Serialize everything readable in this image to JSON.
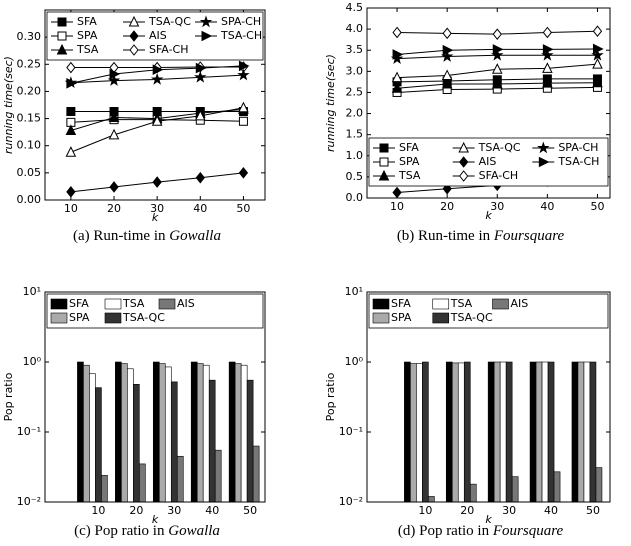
{
  "chart_data": [
    {
      "type": "line",
      "caption": {
        "text": "(a) Run-time in",
        "emphasis": "Gowalla"
      },
      "xlabel": "k",
      "ylabel": "running time(sec)",
      "x": [
        10,
        20,
        30,
        40,
        50
      ],
      "xlim": [
        4,
        55
      ],
      "xticks": [
        10,
        20,
        30,
        40,
        50
      ],
      "ylim": [
        0,
        0.35
      ],
      "yticks": [
        {
          "value": 0,
          "label": "0.00"
        },
        {
          "value": 0.05,
          "label": "0.05"
        },
        {
          "value": 0.1,
          "label": "0.10"
        },
        {
          "value": 0.15,
          "label": "0.15"
        },
        {
          "value": 0.2,
          "label": "0.20"
        },
        {
          "value": 0.25,
          "label": "0.25"
        },
        {
          "value": 0.3,
          "label": "0.30"
        }
      ],
      "legend": "upper left",
      "legend_columns": 3,
      "series": [
        {
          "name": "SFA",
          "color": "#000000",
          "marker": "square",
          "values": [
            0.163,
            0.163,
            0.163,
            0.163,
            0.163
          ]
        },
        {
          "name": "SPA",
          "color": "#000000",
          "marker": "square-open",
          "values": [
            0.143,
            0.148,
            0.148,
            0.147,
            0.145
          ]
        },
        {
          "name": "TSA",
          "color": "#000000",
          "marker": "triangle",
          "values": [
            0.128,
            0.152,
            0.15,
            0.16,
            0.167
          ]
        },
        {
          "name": "TSA-QC",
          "color": "#000000",
          "marker": "triangle-open",
          "values": [
            0.088,
            0.12,
            0.145,
            0.155,
            0.17
          ]
        },
        {
          "name": "AIS",
          "color": "#000000",
          "marker": "diamond",
          "values": [
            0.015,
            0.024,
            0.033,
            0.041,
            0.05
          ]
        },
        {
          "name": "SFA-CH",
          "color": "#000000",
          "marker": "diamond-open",
          "values": [
            0.244,
            0.244,
            0.244,
            0.245,
            0.245
          ]
        },
        {
          "name": "SPA-CH",
          "color": "#000000",
          "marker": "star",
          "values": [
            0.216,
            0.22,
            0.222,
            0.226,
            0.23
          ]
        },
        {
          "name": "TSA-CH",
          "color": "#000000",
          "marker": "triangle-right",
          "values": [
            0.215,
            0.232,
            0.24,
            0.243,
            0.247
          ]
        }
      ]
    },
    {
      "type": "line",
      "caption": {
        "text": "(b) Run-time in",
        "emphasis": "Foursquare"
      },
      "xlabel": "k",
      "ylabel": "running time(sec)",
      "x": [
        10,
        20,
        30,
        40,
        50
      ],
      "xlim": [
        4,
        52.5
      ],
      "xticks": [
        10,
        20,
        30,
        40,
        50
      ],
      "ylim": [
        0,
        4.5
      ],
      "yticks": [
        {
          "value": 0,
          "label": "0.0"
        },
        0.5,
        {
          "value": 1,
          "label": "1.0"
        },
        1.5,
        {
          "value": 2,
          "label": "2.0"
        },
        2.5,
        {
          "value": 3,
          "label": "3.0"
        },
        3.5,
        {
          "value": 4,
          "label": "4.0"
        },
        4.5
      ],
      "legend": "lower center",
      "legend_columns": 3,
      "series": [
        {
          "name": "SFA",
          "color": "#000000",
          "marker": "square",
          "values": [
            2.75,
            2.77,
            2.8,
            2.82,
            2.82
          ]
        },
        {
          "name": "SPA",
          "color": "#000000",
          "marker": "square-open",
          "values": [
            2.5,
            2.57,
            2.58,
            2.6,
            2.62
          ]
        },
        {
          "name": "TSA",
          "color": "#000000",
          "marker": "triangle",
          "values": [
            2.6,
            2.7,
            2.7,
            2.72,
            2.73
          ]
        },
        {
          "name": "TSA-QC",
          "color": "#000000",
          "marker": "triangle-open",
          "values": [
            2.85,
            2.9,
            3.05,
            3.07,
            3.17
          ]
        },
        {
          "name": "AIS",
          "color": "#000000",
          "marker": "diamond",
          "values": [
            0.13,
            0.22,
            0.3,
            0.4,
            0.48
          ]
        },
        {
          "name": "SFA-CH",
          "color": "#000000",
          "marker": "diamond-open",
          "values": [
            3.92,
            3.9,
            3.88,
            3.92,
            3.95
          ]
        },
        {
          "name": "SPA-CH",
          "color": "#000000",
          "marker": "star",
          "values": [
            3.3,
            3.35,
            3.38,
            3.38,
            3.38
          ]
        },
        {
          "name": "TSA-CH",
          "color": "#000000",
          "marker": "triangle-right",
          "values": [
            3.4,
            3.5,
            3.52,
            3.52,
            3.53
          ]
        }
      ]
    },
    {
      "type": "bar",
      "caption": {
        "text": "(c) Pop ratio in",
        "emphasis": "Gowalla"
      },
      "xlabel": "k",
      "ylabel": "Pop ratio",
      "categories": [
        10,
        20,
        30,
        40,
        50
      ],
      "log_scale": true,
      "ylim": [
        0.01,
        10
      ],
      "yticks": [
        {
          "value": 0.01,
          "label": "10⁻²"
        },
        {
          "value": 0.1,
          "label": "10⁻¹"
        },
        {
          "value": 1,
          "label": "10⁰"
        },
        {
          "value": 10,
          "label": "10¹"
        }
      ],
      "legend": "upper left",
      "legend_columns": 4,
      "series": [
        {
          "name": "SFA",
          "color": "#000000",
          "values": [
            1.0,
            1.0,
            1.0,
            1.0,
            1.0
          ]
        },
        {
          "name": "SPA",
          "color": "#aaaaaa",
          "values": [
            0.9,
            0.95,
            0.95,
            0.95,
            0.95
          ]
        },
        {
          "name": "TSA",
          "color": "#ffffff",
          "values": [
            0.68,
            0.8,
            0.85,
            0.9,
            0.9
          ]
        },
        {
          "name": "TSA-QC",
          "color": "#333333",
          "values": [
            0.43,
            0.48,
            0.52,
            0.55,
            0.55
          ]
        },
        {
          "name": "AIS",
          "color": "#777777",
          "values": [
            0.024,
            0.035,
            0.045,
            0.055,
            0.063
          ]
        }
      ]
    },
    {
      "type": "bar",
      "caption": {
        "text": "(d) Pop ratio in",
        "emphasis": "Foursquare"
      },
      "xlabel": "k",
      "ylabel": "Pop ratio",
      "categories": [
        10,
        20,
        30,
        40,
        50
      ],
      "log_scale": true,
      "ylim": [
        0.01,
        10
      ],
      "yticks": [
        {
          "value": 0.01,
          "label": "10⁻²"
        },
        {
          "value": 0.1,
          "label": "10⁻¹"
        },
        {
          "value": 1,
          "label": "10⁰"
        },
        {
          "value": 10,
          "label": "10¹"
        }
      ],
      "legend": "upper left",
      "legend_columns": 4,
      "series": [
        {
          "name": "SFA",
          "color": "#000000",
          "values": [
            1.0,
            1.0,
            1.0,
            1.0,
            1.0
          ]
        },
        {
          "name": "SPA",
          "color": "#aaaaaa",
          "values": [
            0.95,
            0.97,
            1.0,
            1.0,
            1.0
          ]
        },
        {
          "name": "TSA",
          "color": "#ffffff",
          "values": [
            0.95,
            0.97,
            1.0,
            1.0,
            1.0
          ]
        },
        {
          "name": "TSA-QC",
          "color": "#333333",
          "values": [
            1.0,
            1.0,
            1.0,
            1.0,
            1.0
          ]
        },
        {
          "name": "AIS",
          "color": "#777777",
          "values": [
            0.012,
            0.018,
            0.023,
            0.027,
            0.031
          ]
        }
      ]
    }
  ]
}
